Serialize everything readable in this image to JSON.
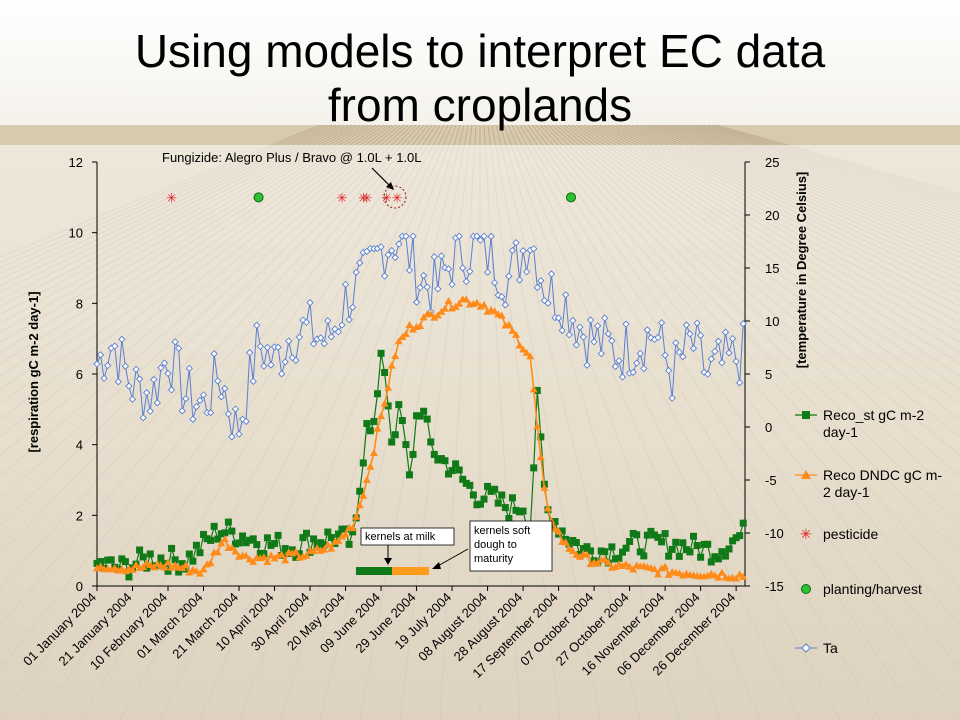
{
  "slide": {
    "title_line1": "Using models to interpret EC data",
    "title_line2": "from croplands"
  },
  "colors": {
    "reco_st": "#0f7a17",
    "reco_dndc": "#ff8c1a",
    "ta": "#5a7fd0",
    "pesticide": "#e11b1b",
    "planting": "#2ec233",
    "sky": "#ffffff",
    "field": "#c8b58f"
  },
  "chart_data": {
    "type": "line",
    "title": "",
    "ylabel": "[respiration gC m-2 day-1]",
    "y2label": "[temperature in Degree Celsius]",
    "ylim": [
      0,
      12
    ],
    "y2lim": [
      -15,
      25
    ],
    "xlim": [
      "2004-01-01",
      "2004-12-31"
    ],
    "yticks": [
      "0",
      "2",
      "4",
      "6",
      "8",
      "10",
      "12"
    ],
    "y2ticks": [
      "-15",
      "-10",
      "-5",
      "0",
      "5",
      "10",
      "15",
      "20",
      "25"
    ],
    "xticks": [
      "01 January 2004",
      "21 January 2004",
      "10 February 2004",
      "01 March 2004",
      "21 March 2004",
      "10 April 2004",
      "30 April 2004",
      "20 May 2004",
      "09 June 2004",
      "29 June 2004",
      "19 July 2004",
      "08 August 2004",
      "28 August 2004",
      "17 September 2004",
      "07 October 2004",
      "27 October 2004",
      "16 November 2004",
      "06 December 2004",
      "26 December 2004"
    ],
    "legend_position": "right",
    "series": [
      {
        "name": "Reco_st gC m-2 day-1",
        "axis": "left",
        "marker": "square",
        "x": [
          "2004-01-01",
          "2004-01-15",
          "2004-02-01",
          "2004-02-20",
          "2004-03-10",
          "2004-03-25",
          "2004-04-05",
          "2004-04-20",
          "2004-05-01",
          "2004-05-15",
          "2004-05-25",
          "2004-06-01",
          "2004-06-05",
          "2004-06-10",
          "2004-06-15",
          "2004-06-20",
          "2004-06-25",
          "2004-06-30",
          "2004-07-03",
          "2004-07-07",
          "2004-07-12",
          "2004-07-18",
          "2004-07-25",
          "2004-08-01",
          "2004-08-10",
          "2004-08-20",
          "2004-08-28",
          "2004-09-01",
          "2004-09-05",
          "2004-09-10",
          "2004-09-20",
          "2004-10-01",
          "2004-10-15",
          "2004-11-01",
          "2004-11-15",
          "2004-12-01",
          "2004-12-15",
          "2004-12-31"
        ],
        "y": [
          0.6,
          0.5,
          0.8,
          0.7,
          1.6,
          1.4,
          1.2,
          1.1,
          1.3,
          1.4,
          1.2,
          4.8,
          4.5,
          6.7,
          4.2,
          5.0,
          3.0,
          5.2,
          4.8,
          4.0,
          3.6,
          3.4,
          3.0,
          2.6,
          2.5,
          2.2,
          2.3,
          1.7,
          5.2,
          2.2,
          1.5,
          1.0,
          1.0,
          1.2,
          1.2,
          1.1,
          1.0,
          1.5
        ]
      },
      {
        "name": "Reco DNDC gC m-2 day-1",
        "axis": "left",
        "marker": "triangle",
        "x": [
          "2004-01-01",
          "2004-01-20",
          "2004-02-10",
          "2004-03-01",
          "2004-03-12",
          "2004-03-25",
          "2004-04-10",
          "2004-04-30",
          "2004-05-15",
          "2004-05-25",
          "2004-06-01",
          "2004-06-10",
          "2004-06-18",
          "2004-06-25",
          "2004-07-05",
          "2004-07-15",
          "2004-07-25",
          "2004-08-05",
          "2004-08-15",
          "2004-08-25",
          "2004-09-01",
          "2004-09-05",
          "2004-09-10",
          "2004-09-20",
          "2004-10-01",
          "2004-10-15",
          "2004-11-01",
          "2004-11-20",
          "2004-12-10",
          "2004-12-31"
        ],
        "y": [
          0.6,
          0.5,
          0.6,
          0.4,
          1.3,
          0.8,
          0.8,
          0.9,
          1.2,
          1.8,
          3.0,
          5.0,
          6.8,
          7.3,
          7.6,
          7.9,
          8.1,
          8.0,
          7.6,
          7.0,
          6.5,
          4.5,
          2.2,
          1.2,
          0.8,
          0.6,
          0.5,
          0.4,
          0.35,
          0.3
        ]
      },
      {
        "name": "Ta",
        "axis": "right",
        "marker": "diamond",
        "x": [
          "2004-01-01",
          "2004-01-10",
          "2004-01-20",
          "2004-02-01",
          "2004-02-10",
          "2004-02-20",
          "2004-03-01",
          "2004-03-10",
          "2004-03-20",
          "2004-04-01",
          "2004-04-10",
          "2004-04-20",
          "2004-05-01",
          "2004-05-10",
          "2004-05-20",
          "2004-06-01",
          "2004-06-10",
          "2004-06-20",
          "2004-07-01",
          "2004-07-10",
          "2004-07-20",
          "2004-08-01",
          "2004-08-10",
          "2004-08-20",
          "2004-09-01",
          "2004-09-10",
          "2004-09-20",
          "2004-10-01",
          "2004-10-10",
          "2004-10-20",
          "2004-11-01",
          "2004-11-10",
          "2004-11-20",
          "2004-12-01",
          "2004-12-10",
          "2004-12-20",
          "2004-12-31"
        ],
        "y": [
          6,
          8,
          4,
          3,
          7,
          3,
          2,
          5,
          -0.5,
          8,
          6,
          9,
          9,
          8,
          12,
          14,
          17,
          18,
          14,
          13,
          16,
          17,
          16,
          14,
          18,
          13,
          12,
          9,
          8,
          7,
          8,
          9,
          5,
          8,
          5,
          6,
          7
        ]
      },
      {
        "name": "pesticide",
        "axis": "left",
        "marker": "x",
        "x": [
          "2004-02-12",
          "2004-05-18",
          "2004-05-30",
          "2004-06-01",
          "2004-06-12",
          "2004-06-18"
        ],
        "y": [
          11,
          11,
          11,
          11,
          11,
          11
        ]
      },
      {
        "name": "planting/harvest",
        "axis": "left",
        "marker": "circle",
        "x": [
          "2004-04-01",
          "2004-09-24"
        ],
        "y": [
          11,
          11
        ]
      }
    ],
    "annotations": [
      {
        "text": "Fungizide: Alegro Plus / Bravo  @ 1.0L + 1.0L"
      },
      {
        "text": "kernels at milk"
      },
      {
        "text": "kernels soft dough to maturity",
        "lines": [
          "kernels soft",
          "dough to",
          "maturity"
        ]
      }
    ],
    "phase_bar": [
      {
        "label": "kernels at milk",
        "color": "#0f7a17"
      },
      {
        "label": "kernels soft dough to maturity",
        "color": "#ff9c1c"
      }
    ]
  },
  "legend": {
    "reco_st_line1": "Reco_st gC m-2",
    "reco_st_line2": "day-1",
    "dndc_line1": "Reco DNDC gC m-",
    "dndc_line2": "2 day-1",
    "pesticide": "pesticide",
    "planting": "planting/harvest",
    "ta": "Ta"
  }
}
